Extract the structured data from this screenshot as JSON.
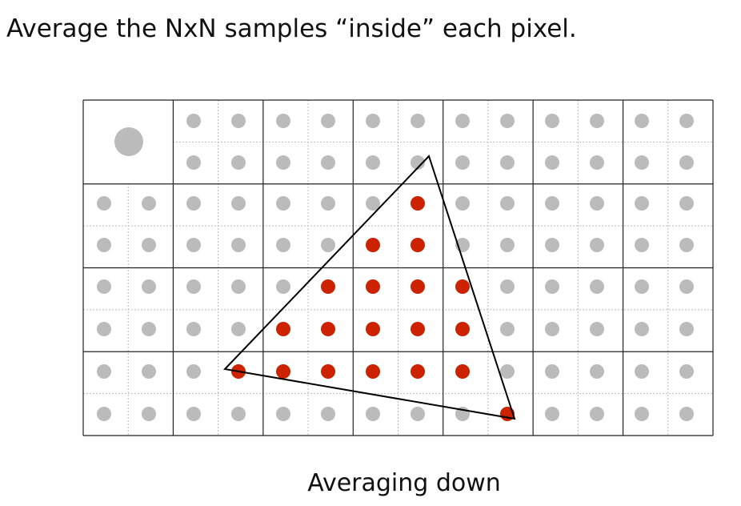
{
  "title": "Average the NxN samples “inside” each pixel.",
  "caption": "Averaging down"
}
